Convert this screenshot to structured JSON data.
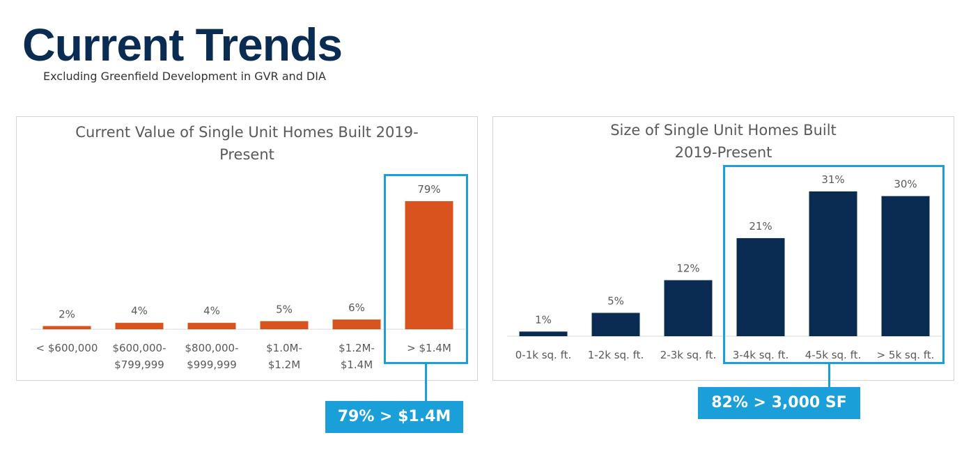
{
  "header": {
    "title": "Current Trends",
    "subtitle": "Excluding Greenfield Development in GVR and DIA"
  },
  "colors": {
    "orange": "#d9531e",
    "navy": "#0a2c52",
    "accent": "#1a9fd8"
  },
  "callouts": {
    "left": "79% > $1.4M",
    "right": "82% > 3,000 SF"
  },
  "chart_data": [
    {
      "type": "bar",
      "title_lines": [
        "Current Value of Single Unit Homes Built 2019-",
        "Present"
      ],
      "categories": [
        [
          "< $600,000"
        ],
        [
          "$600,000-",
          "$799,999"
        ],
        [
          "$800,000-",
          "$999,999"
        ],
        [
          "$1.0M-",
          "$1.2M"
        ],
        [
          "$1.2M-",
          "$1.4M"
        ],
        [
          "> $1.4M"
        ]
      ],
      "values": [
        2,
        4,
        4,
        5,
        6,
        79
      ],
      "data_labels": [
        "2%",
        "4%",
        "4%",
        "5%",
        "6%",
        "79%"
      ],
      "ylim": [
        0,
        79
      ],
      "color": "#d9531e",
      "grid": false,
      "legend": "none"
    },
    {
      "type": "bar",
      "title_lines": [
        "Size of Single Unit Homes Built",
        "2019-Present"
      ],
      "categories": [
        [
          "0-1k sq. ft."
        ],
        [
          "1-2k sq. ft."
        ],
        [
          "2-3k sq. ft."
        ],
        [
          "3-4k sq. ft."
        ],
        [
          "4-5k sq. ft."
        ],
        [
          "> 5k sq. ft."
        ]
      ],
      "values": [
        1,
        5,
        12,
        21,
        31,
        30
      ],
      "data_labels": [
        "1%",
        "5%",
        "12%",
        "21%",
        "31%",
        "30%"
      ],
      "ylim": [
        0,
        31
      ],
      "color": "#0a2c52",
      "grid": false,
      "legend": "none"
    }
  ]
}
